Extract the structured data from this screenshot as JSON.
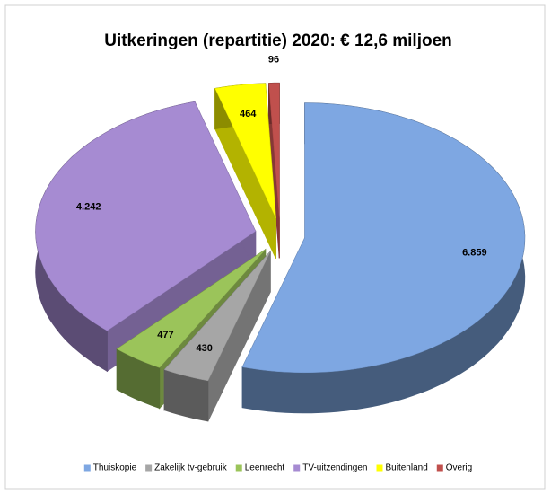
{
  "chart_data": {
    "type": "pie3d",
    "title": "Uitkeringen (repartitie) 2020: € 12,6 miljoen",
    "categories": [
      "Thuiskopie",
      "Zakelijk tv-gebruik",
      "Leenrecht",
      "TV-uitzendingen",
      "Buitenland",
      "Overig"
    ],
    "values": [
      6859,
      430,
      477,
      4242,
      464,
      96
    ],
    "value_labels": [
      "6.859",
      "430",
      "477",
      "4.242",
      "464",
      "96"
    ],
    "colors": [
      "#7ea7e2",
      "#a6a6a6",
      "#9bc45a",
      "#a68bd2",
      "#ffff00",
      "#c0504d"
    ],
    "legend": "bottom"
  }
}
